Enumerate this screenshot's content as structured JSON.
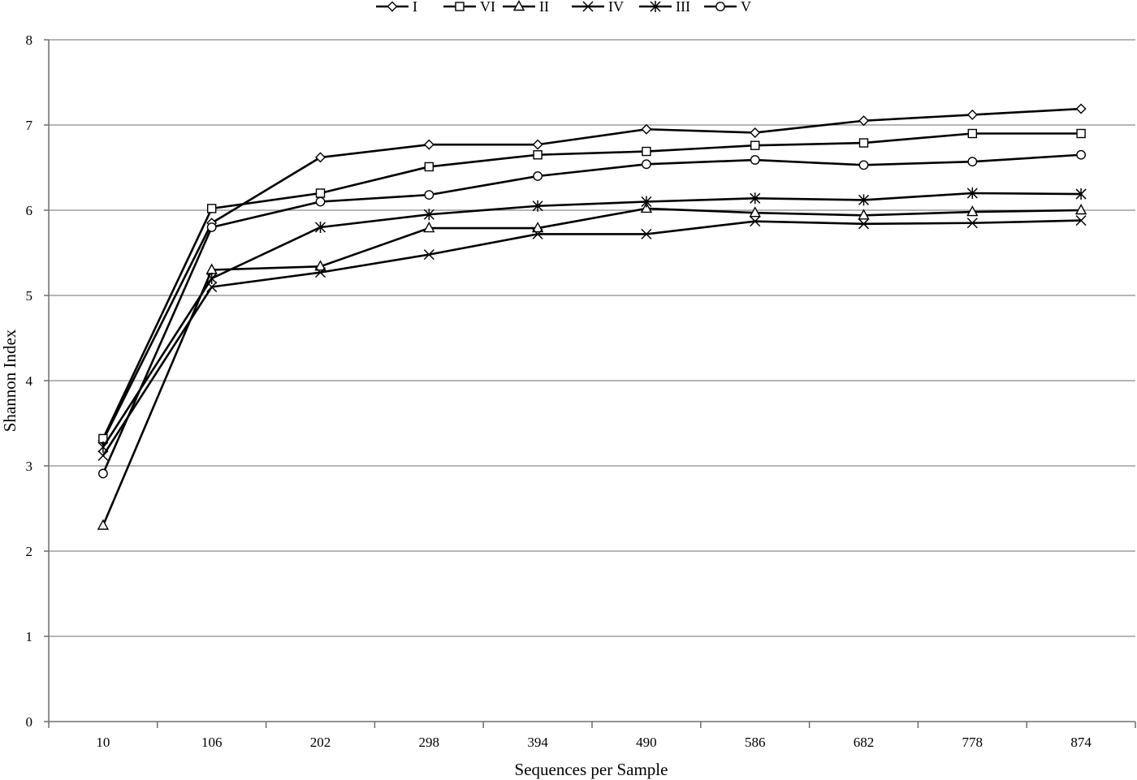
{
  "chart_data": {
    "type": "line",
    "title": "",
    "xlabel": "Sequences per Sample",
    "ylabel": "Shannon Index",
    "categories": [
      "10",
      "106",
      "202",
      "298",
      "394",
      "490",
      "586",
      "682",
      "778",
      "874"
    ],
    "ylim": [
      0,
      8
    ],
    "yticks": [
      "0",
      "1",
      "2",
      "3",
      "4",
      "5",
      "6",
      "7",
      "8"
    ],
    "grid": true,
    "legend_position": "top",
    "series": [
      {
        "name": "I",
        "marker": "diamond",
        "values": [
          3.3,
          5.85,
          6.62,
          6.77,
          6.77,
          6.95,
          6.91,
          7.05,
          7.12,
          7.19
        ]
      },
      {
        "name": "VI",
        "marker": "square",
        "values": [
          3.32,
          6.02,
          6.2,
          6.51,
          6.65,
          6.69,
          6.76,
          6.79,
          6.9,
          6.9
        ]
      },
      {
        "name": "II",
        "marker": "triangle",
        "values": [
          2.3,
          5.3,
          5.34,
          5.79,
          5.79,
          6.02,
          5.97,
          5.94,
          5.98,
          6.0
        ]
      },
      {
        "name": "IV",
        "marker": "x",
        "values": [
          3.12,
          5.1,
          5.27,
          5.48,
          5.72,
          5.72,
          5.87,
          5.84,
          5.85,
          5.88
        ]
      },
      {
        "name": "III",
        "marker": "star",
        "values": [
          3.22,
          5.2,
          5.8,
          5.95,
          6.05,
          6.1,
          6.14,
          6.12,
          6.2,
          6.19
        ]
      },
      {
        "name": "V",
        "marker": "circle",
        "values": [
          2.91,
          5.8,
          6.1,
          6.18,
          6.4,
          6.54,
          6.59,
          6.53,
          6.57,
          6.65
        ]
      }
    ]
  }
}
